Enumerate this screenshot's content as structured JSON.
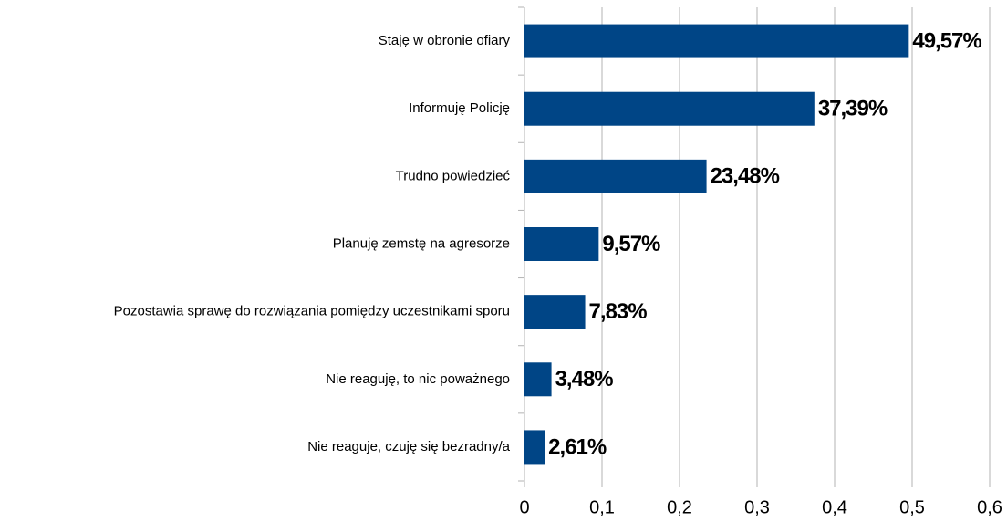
{
  "chart_data": {
    "type": "bar",
    "orientation": "horizontal",
    "categories": [
      "Staję w obronie ofiary",
      "Informuję Policję",
      "Trudno powiedzieć",
      "Planuję zemstę na agresorze",
      "Pozostawia sprawę do rozwiązania pomiędzy uczestnikami sporu",
      "Nie reaguję, to nic poważnego",
      "Nie reaguje, czuję się bezradny/a"
    ],
    "values": [
      0.4957,
      0.3739,
      0.2348,
      0.0957,
      0.0783,
      0.0348,
      0.0261
    ],
    "value_labels": [
      "49,57%",
      "37,39%",
      "23,48%",
      "9,57%",
      "7,83%",
      "3,48%",
      "2,61%"
    ],
    "color": "#004586",
    "xlim": [
      0,
      0.6
    ],
    "xticks": [
      0,
      {
        "value": 0.1,
        "label": "0,1"
      },
      {
        "value": 0.2,
        "label": "0,2"
      },
      {
        "value": 0.3,
        "label": "0,3"
      },
      {
        "value": 0.4,
        "label": "0,4"
      },
      {
        "value": 0.5,
        "label": "0,5"
      },
      {
        "value": 0.6,
        "label": "0,6"
      }
    ],
    "grid": true
  }
}
